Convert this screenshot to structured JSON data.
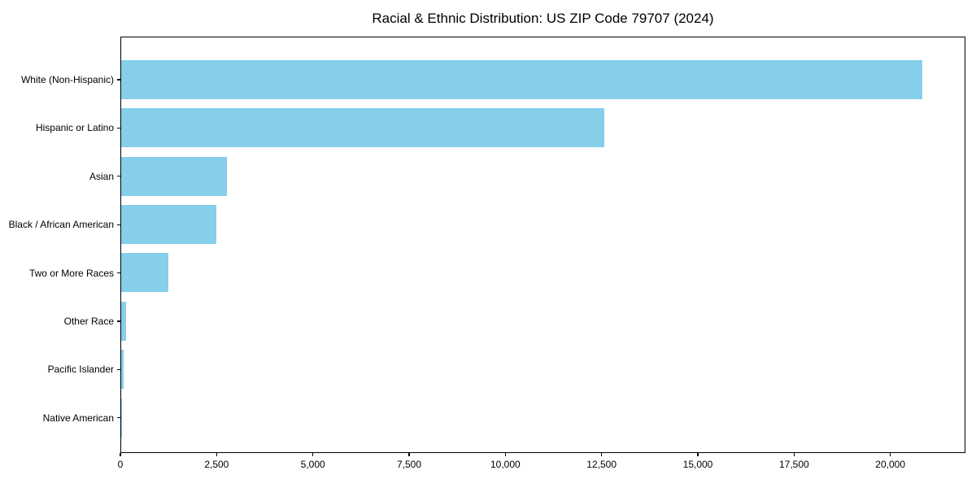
{
  "title": "Racial & Ethnic Distribution: US ZIP Code 79707 (2024)",
  "colors": {
    "bar": "#87CEEB",
    "spine": "#000000",
    "background": "#ffffff",
    "text": "#000000"
  },
  "chart_data": {
    "type": "bar",
    "orientation": "horizontal",
    "title": "Racial & Ethnic Distribution: US ZIP Code 79707 (2024)",
    "categories": [
      "White (Non-Hispanic)",
      "Hispanic or Latino",
      "Asian",
      "Black / African American",
      "Two or More Races",
      "Other Race",
      "Pacific Islander",
      "Native American"
    ],
    "values": [
      20800,
      12550,
      2740,
      2480,
      1220,
      130,
      65,
      20
    ],
    "xlabel": "",
    "ylabel": "",
    "xlim": [
      0,
      21900
    ],
    "xticks": [
      0,
      2500,
      5000,
      7500,
      10000,
      12500,
      15000,
      17500,
      20000
    ],
    "xtick_labels": [
      "0",
      "2,500",
      "5,000",
      "7,500",
      "10,000",
      "12,500",
      "15,000",
      "17,500",
      "20,000"
    ],
    "grid": false,
    "legend": null,
    "bar_color": "#87CEEB"
  }
}
